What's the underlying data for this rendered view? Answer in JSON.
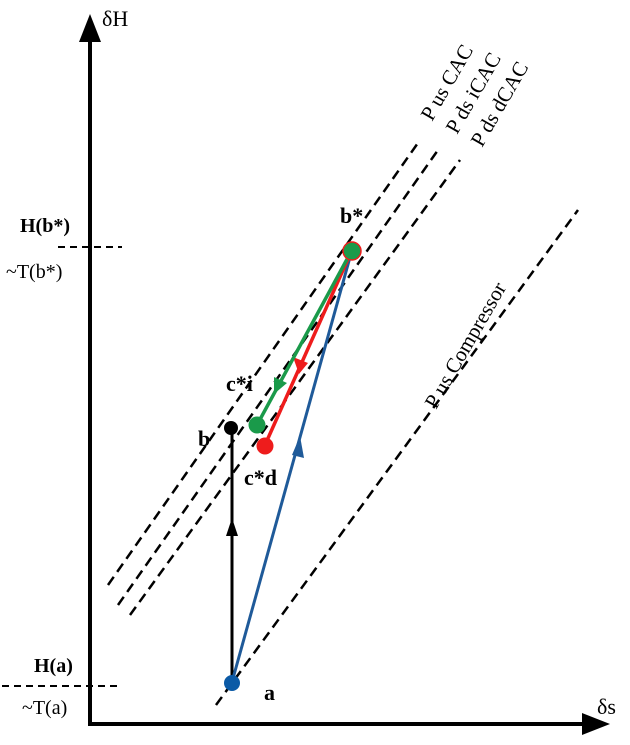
{
  "axes": {
    "y_label": "δH",
    "x_label": "δs"
  },
  "ticks": {
    "hb_label": "H(b*)",
    "tb_label": "~T(b*)",
    "ha_label": "H(a)",
    "ta_label": "~T(a)"
  },
  "isobars": {
    "us_cac": "P us CAC",
    "ds_icac": "P ds iCAC",
    "ds_dcac": "P ds dCAC",
    "us_compressor": "P us Compressor"
  },
  "points": {
    "a": "a",
    "b": "b",
    "b_star": "b*",
    "c_star_i": "c*i",
    "c_star_d": "c*d"
  },
  "colors": {
    "blue_path": "#1f5a99",
    "point_a": "#0b5aa6",
    "green_path": "#1a9a4a",
    "red_path": "#ee1c1c",
    "black": "#000000"
  }
}
